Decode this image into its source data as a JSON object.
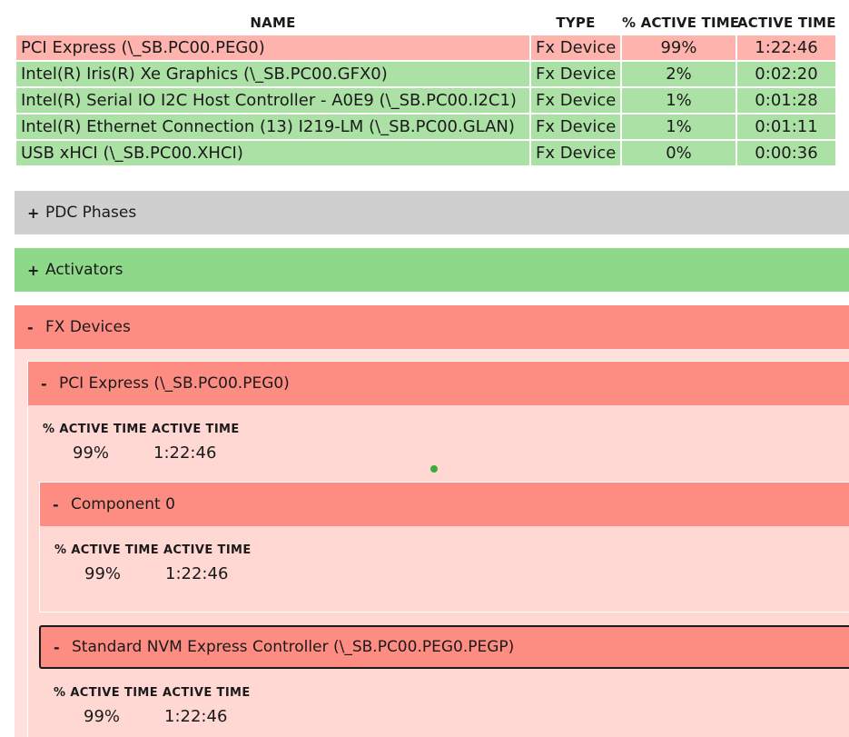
{
  "table": {
    "headers": [
      "NAME",
      "TYPE",
      "% ACTIVE TIME",
      "ACTIVE TIME"
    ],
    "rows": [
      {
        "name": "PCI Express (\\_SB.PC00.PEG0)",
        "type": "Fx Device",
        "pct": "99%",
        "time": "1:22:46"
      },
      {
        "name": "Intel(R) Iris(R) Xe Graphics (\\_SB.PC00.GFX0)",
        "type": "Fx Device",
        "pct": "2%",
        "time": "0:02:20"
      },
      {
        "name": "Intel(R) Serial IO I2C Host Controller - A0E9 (\\_SB.PC00.I2C1)",
        "type": "Fx Device",
        "pct": "1%",
        "time": "0:01:28"
      },
      {
        "name": "Intel(R) Ethernet Connection (13) I219-LM (\\_SB.PC00.GLAN)",
        "type": "Fx Device",
        "pct": "1%",
        "time": "0:01:11"
      },
      {
        "name": "USB xHCI (\\_SB.PC00.XHCI)",
        "type": "Fx Device",
        "pct": "0%",
        "time": "0:00:36"
      }
    ]
  },
  "sections": {
    "pdc": {
      "toggle": "+",
      "label": "PDC Phases"
    },
    "activators": {
      "toggle": "+",
      "label": "Activators"
    },
    "fx": {
      "toggle": "-",
      "label": "FX Devices"
    }
  },
  "pci": {
    "toggle": "-",
    "label": "PCI Express (\\_SB.PC00.PEG0)",
    "metric_headers": "% ACTIVE TIME ACTIVE TIME",
    "pct": "99%",
    "time": "1:22:46"
  },
  "component0": {
    "toggle": "-",
    "label": "Component 0",
    "metric_headers": "% ACTIVE TIME ACTIVE TIME",
    "pct": "99%",
    "time": "1:22:46"
  },
  "nvm": {
    "toggle": "-",
    "label": "Standard NVM Express Controller (\\_SB.PC00.PEG0.PEGP)",
    "metric_headers": "% ACTIVE TIME ACTIVE TIME",
    "pct": "99%",
    "time": "1:22:46"
  },
  "colors": {
    "hot_row": "#ffb3ad",
    "ok_row": "#ace1a5",
    "pdc_bar": "#cfcfcf",
    "activators_bar": "#8ed88a",
    "fx_bar": "#fd8d83"
  }
}
